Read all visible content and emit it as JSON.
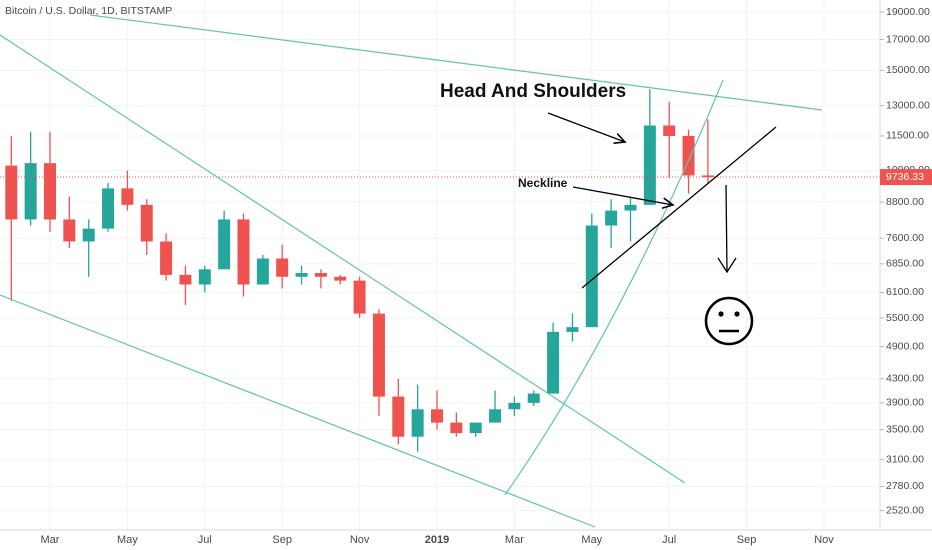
{
  "chart_data": {
    "type": "candlestick",
    "title": "Bitcoin / U.S. Dollar, 1D, BITSTAMP",
    "categories": [
      null,
      null,
      "Mar",
      null,
      null,
      null,
      "May",
      null,
      null,
      null,
      "Jul",
      null,
      null,
      null,
      "Sep",
      null,
      null,
      null,
      "Nov",
      null,
      null,
      null,
      "2019",
      null,
      null,
      null,
      "Mar",
      null,
      null,
      null,
      "May",
      null,
      null,
      null,
      "Jul",
      null,
      null,
      null,
      "Sep",
      null,
      null,
      null,
      "Nov",
      null
    ],
    "open": [
      10200,
      8200,
      10300,
      8200,
      7500,
      7900,
      9300,
      8700,
      7500,
      6550,
      6300,
      6700,
      8200,
      6300,
      7000,
      6500,
      6600,
      6500,
      6400,
      5600,
      4000,
      3400,
      3800,
      3600,
      3450,
      3600,
      3800,
      3900,
      4050,
      5200,
      5300,
      8000,
      8500,
      8700,
      12000,
      11500,
      9800,
      null,
      null,
      null,
      null,
      null,
      null,
      null
    ],
    "high": [
      11500,
      11700,
      11700,
      9000,
      8200,
      9500,
      9990,
      8900,
      7750,
      6800,
      6800,
      8500,
      8400,
      7100,
      7400,
      6800,
      6700,
      6550,
      6500,
      5700,
      4300,
      4200,
      4100,
      3750,
      3600,
      4100,
      4000,
      4100,
      5400,
      5600,
      8400,
      8900,
      9000,
      13900,
      13200,
      11800,
      12300,
      null,
      null,
      null,
      null,
      null,
      null,
      null
    ],
    "low": [
      5900,
      8000,
      7800,
      7300,
      6500,
      7800,
      8500,
      7100,
      6400,
      5800,
      6100,
      6700,
      6000,
      6300,
      6200,
      6300,
      6200,
      6300,
      5500,
      3700,
      3300,
      3200,
      3500,
      3400,
      3400,
      3600,
      3700,
      3850,
      4050,
      5000,
      5300,
      7300,
      7500,
      8700,
      9700,
      9100,
      9500,
      null,
      null,
      null,
      null,
      null,
      null,
      null
    ],
    "close": [
      8200,
      10300,
      8200,
      7500,
      7900,
      9300,
      8700,
      7500,
      6550,
      6300,
      6700,
      8200,
      6300,
      7000,
      6500,
      6600,
      6500,
      6400,
      5600,
      4000,
      3400,
      3800,
      3600,
      3450,
      3600,
      3800,
      3900,
      4050,
      5200,
      5300,
      8000,
      8500,
      8700,
      12000,
      11500,
      9800,
      9736.33,
      null,
      null,
      null,
      null,
      null,
      null,
      null
    ],
    "up_color": "#26a69a",
    "down_color": "#ef5350",
    "log_scale": true,
    "ylim": [
      2330,
      19950
    ],
    "yticks": [
      {
        "value": 19000,
        "label": "19000.00"
      },
      {
        "value": 17000,
        "label": "17000.00"
      },
      {
        "value": 15000,
        "label": "15000.00"
      },
      {
        "value": 13000,
        "label": "13000.00"
      },
      {
        "value": 11500,
        "label": "11500.00"
      },
      {
        "value": 10000,
        "label": "10000.00"
      },
      {
        "value": 8800,
        "label": "8800.00"
      },
      {
        "value": 7600,
        "label": "7600.00"
      },
      {
        "value": 6850,
        "label": "6850.00"
      },
      {
        "value": 6100,
        "label": "6100.00"
      },
      {
        "value": 5500,
        "label": "5500.00"
      },
      {
        "value": 4900,
        "label": "4900.00"
      },
      {
        "value": 4300,
        "label": "4300.00"
      },
      {
        "value": 3900,
        "label": "3900.00"
      },
      {
        "value": 3500,
        "label": "3500.00"
      },
      {
        "value": 3100,
        "label": "3100.00"
      },
      {
        "value": 2780,
        "label": "2780.00"
      },
      {
        "value": 2520,
        "label": "2520.00"
      }
    ],
    "last_price": 9736.33,
    "annotations": [
      "Head And Shoulders",
      "Neckline"
    ]
  }
}
